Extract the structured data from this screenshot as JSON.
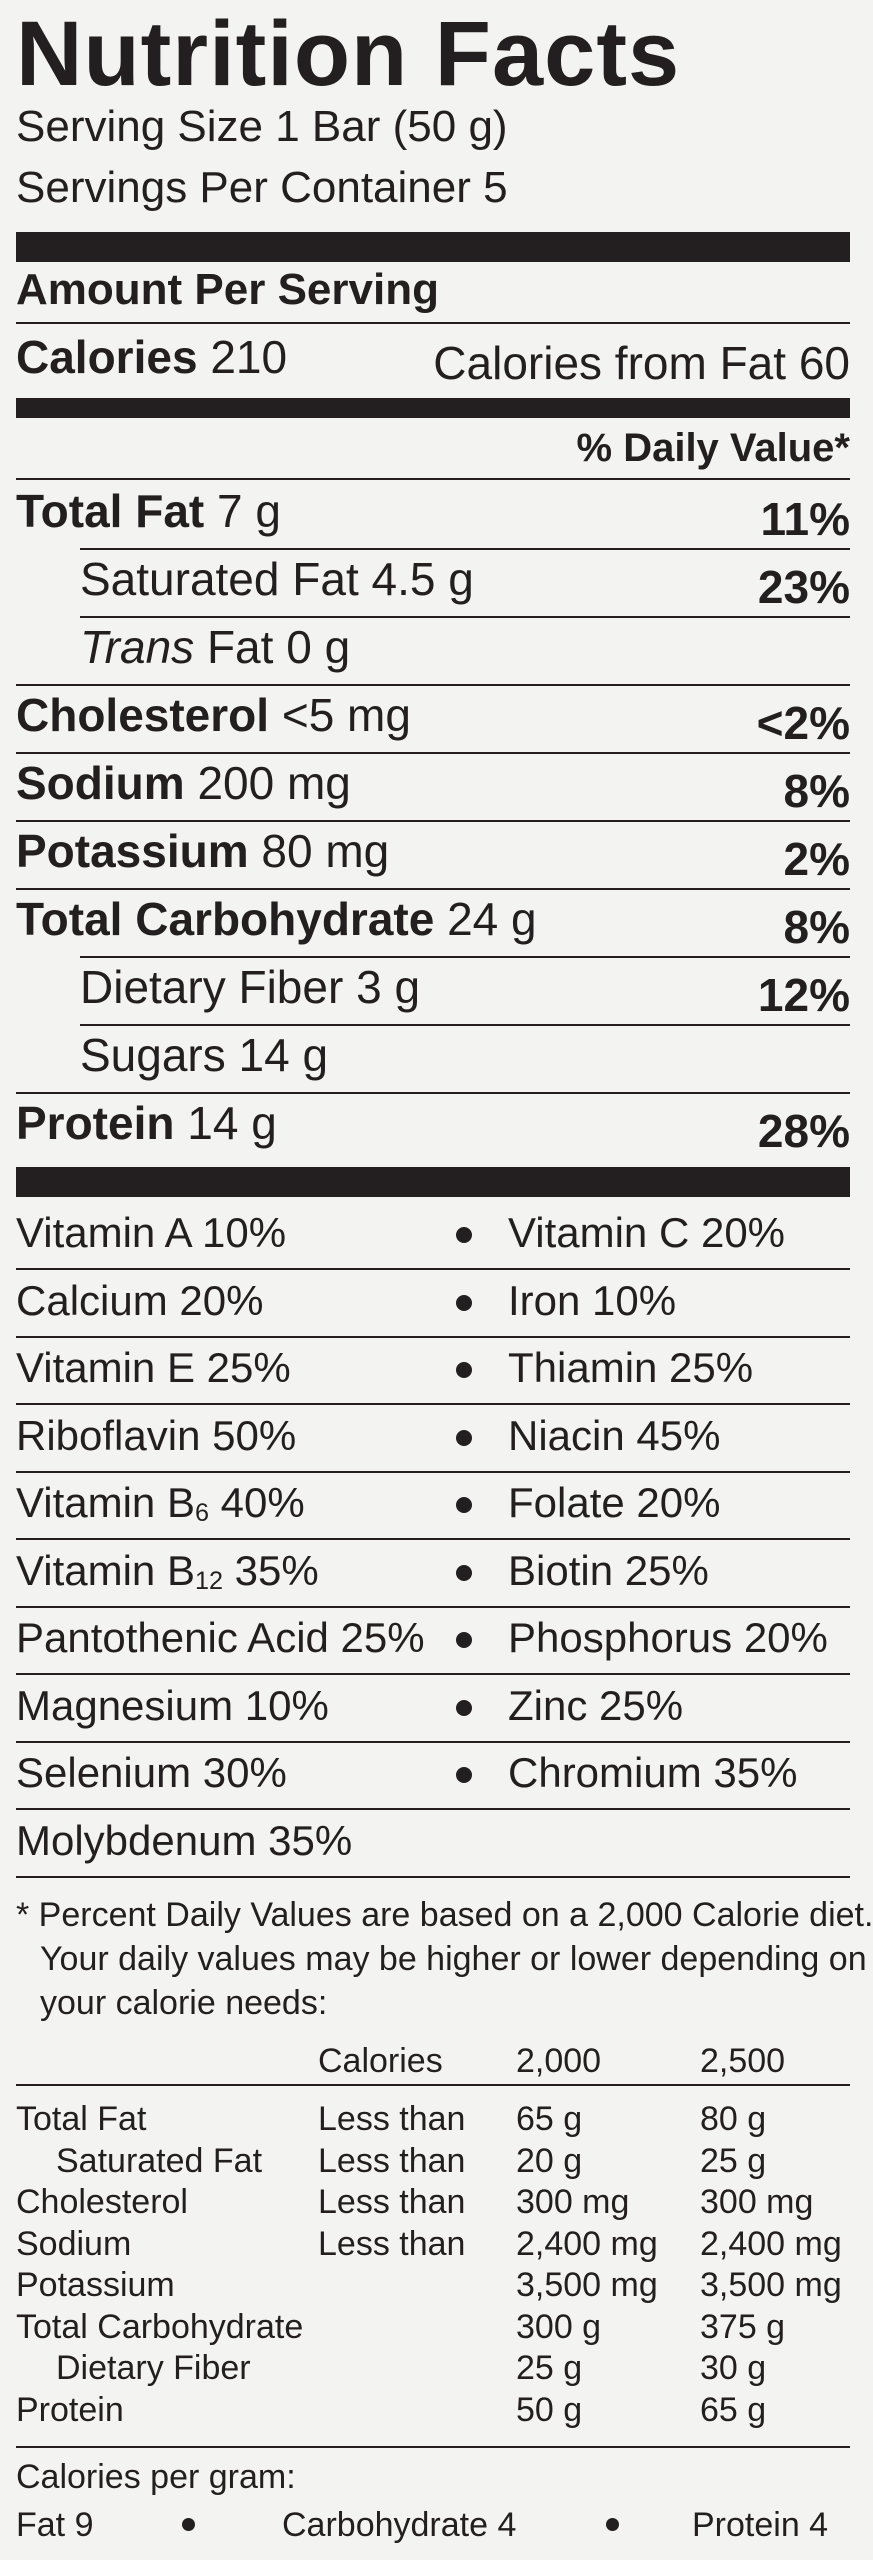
{
  "title": "Nutrition Facts",
  "serving_size": "Serving Size 1 Bar (50 g)",
  "servings_per_container": "Servings Per Container 5",
  "amount_per_serving": "Amount Per Serving",
  "calories_label": "Calories",
  "calories_value": "210",
  "calories_from_fat": "Calories from Fat 60",
  "daily_value_header": "% Daily Value*",
  "nutrients": [
    {
      "label": "Total Fat",
      "amount": "7 g",
      "dv": "11%"
    },
    {
      "label": "Saturated Fat",
      "amount": "4.5 g",
      "dv": "23%"
    },
    {
      "label_italic": "Trans",
      "label": "Fat",
      "amount": "0 g",
      "dv": ""
    },
    {
      "label": "Cholesterol",
      "amount": "<5 mg",
      "dv": "<2%"
    },
    {
      "label": "Sodium",
      "amount": "200 mg",
      "dv": "8%"
    },
    {
      "label": "Potassium",
      "amount": "80 mg",
      "dv": "2%"
    },
    {
      "label": "Total Carbohydrate",
      "amount": "24 g",
      "dv": "8%"
    },
    {
      "label": "Dietary Fiber",
      "amount": "3 g",
      "dv": "12%"
    },
    {
      "label": "Sugars",
      "amount": "14 g",
      "dv": ""
    },
    {
      "label": "Protein",
      "amount": "14 g",
      "dv": "28%"
    }
  ],
  "vitamins": [
    [
      "Vitamin A 10%",
      "Vitamin C 20%"
    ],
    [
      "Calcium 20%",
      "Iron 10%"
    ],
    [
      "Vitamin E 25%",
      "Thiamin 25%"
    ],
    [
      "Riboflavin 50%",
      "Niacin 45%"
    ],
    [
      {
        "name": "Vitamin B",
        "sub": "6",
        "val": " 40%"
      },
      "Folate 20%"
    ],
    [
      {
        "name": "Vitamin B",
        "sub": "12",
        "val": " 35%"
      },
      "Biotin 25%"
    ],
    [
      "Pantothenic Acid 25%",
      "Phosphorus 20%"
    ],
    [
      "Magnesium 10%",
      "Zinc 25%"
    ],
    [
      "Selenium 30%",
      "Chromium 35%"
    ],
    [
      "Molybdenum 35%",
      ""
    ]
  ],
  "footnote": [
    "* Percent Daily Values are based on a 2,000 Calorie diet.",
    "Your daily values may be higher or lower depending on",
    "your calorie needs:"
  ],
  "reference_table": {
    "header": [
      "Calories",
      "2,000",
      "2,500"
    ],
    "rows": [
      [
        "Total Fat",
        "Less than",
        "65 g",
        "80 g"
      ],
      [
        "Saturated Fat",
        "Less than",
        "20 g",
        "25 g"
      ],
      [
        "Cholesterol",
        "Less than",
        "300 mg",
        "300 mg"
      ],
      [
        "Sodium",
        "Less than",
        "2,400 mg",
        "2,400 mg"
      ],
      [
        "Potassium",
        "",
        "3,500 mg",
        "3,500 mg"
      ],
      [
        "Total Carbohydrate",
        "",
        "300 g",
        "375 g"
      ],
      [
        "Dietary Fiber",
        "",
        "25 g",
        "30 g"
      ],
      [
        "Protein",
        "",
        "50 g",
        "65 g"
      ]
    ]
  },
  "calories_per_gram": "Calories per gram:",
  "cpg_items": [
    "Fat 9",
    "Carbohydrate 4",
    "Protein 4"
  ]
}
